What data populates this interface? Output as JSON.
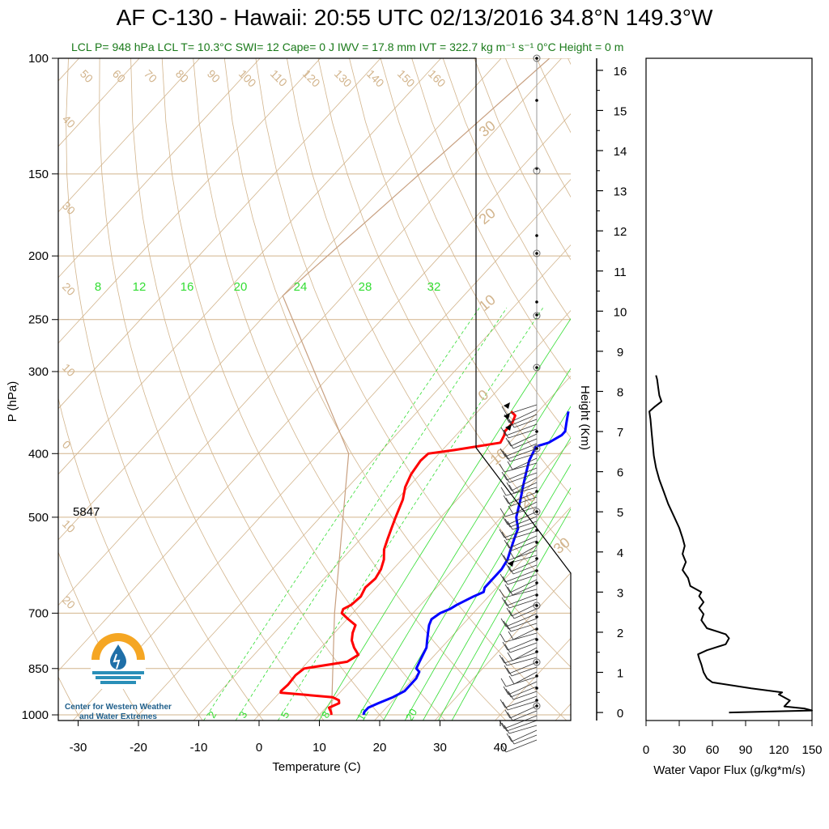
{
  "header": {
    "title": "AF C-130 - Hawaii: 20:55 UTC 02/13/2016  34.8°N 149.3°W",
    "subtitle": "LCL P= 948 hPa  LCL T= 10.3°C  SWI= 12  Cape= 0 J  IWV = 17.8 mm  IVT = 322.7 kg m⁻¹ s⁻¹  0°C Height = 0 m"
  },
  "logo": {
    "line1": "Center for Western Weather",
    "line2": "and Water Extremes",
    "colors": {
      "sun": "#f5a623",
      "drop": "#1f6fa8",
      "water": "#2a8fb8"
    }
  },
  "colors": {
    "temperature": "#ff0000",
    "dewpoint": "#0000ff",
    "skew_lines": "#d2b48c",
    "mixing_ratio": "#33dd33",
    "frame": "#000000"
  },
  "chart_data": [
    {
      "type": "line",
      "name": "skew-t",
      "xlabel": "Temperature (C)",
      "ylabel": "P (hPa)",
      "x_ticks": [
        "-30",
        "-20",
        "-10",
        "0",
        "10",
        "20",
        "30",
        "40"
      ],
      "y_ticks": [
        "100",
        "150",
        "200",
        "250",
        "300",
        "400",
        "500",
        "700",
        "850",
        "1000"
      ],
      "xlim": [
        -33,
        45
      ],
      "ylim_hPa": [
        100,
        1020
      ],
      "annotation": "5847",
      "isotherm_labels": [
        "50",
        "60",
        "70",
        "80",
        "90",
        "100",
        "110",
        "120",
        "130",
        "140",
        "150",
        "160",
        "40",
        "30",
        "20",
        "10",
        "0",
        "10",
        "20"
      ],
      "theta_labels": [
        "30",
        "20",
        "10",
        "0",
        "10",
        "20",
        "30"
      ],
      "mixing_ratio_labels_top": [
        "8",
        "12",
        "16",
        "20",
        "24",
        "28",
        "32"
      ],
      "mixing_ratio_labels_bottom": [
        "2",
        "3",
        "5",
        "8",
        "12",
        "20"
      ],
      "series": [
        {
          "name": "Temperature",
          "p": [
            1000,
            990,
            975,
            960,
            950,
            940,
            925,
            920,
            900,
            870,
            850,
            830,
            810,
            790,
            770,
            750,
            730,
            715,
            700,
            690,
            680,
            660,
            640,
            620,
            600,
            580,
            560,
            540,
            520,
            500,
            470,
            450,
            430,
            410,
            400,
            395,
            385,
            375,
            370,
            360,
            350,
            345
          ],
          "t": [
            12.0,
            11.5,
            10.5,
            11.5,
            11.0,
            9.5,
            0.2,
            0.0,
            0.2,
            0.0,
            0.4,
            6.5,
            7.3,
            5.5,
            4.0,
            3.0,
            2.3,
            0.2,
            -1.8,
            -2.2,
            -1.5,
            -1.2,
            -1.8,
            -1.5,
            -2.0,
            -3.0,
            -4.5,
            -5.5,
            -6.5,
            -7.5,
            -9.0,
            -10.5,
            -11.5,
            -12.0,
            -11.8,
            -8.0,
            -1.5,
            -2.0,
            -2.5,
            -2.5,
            -3.2,
            -4.5
          ]
        },
        {
          "name": "Dewpoint",
          "p": [
            1000,
            990,
            975,
            960,
            940,
            920,
            900,
            880,
            860,
            850,
            830,
            810,
            790,
            770,
            750,
            730,
            715,
            700,
            690,
            680,
            660,
            650,
            640,
            620,
            600,
            580,
            560,
            540,
            520,
            500,
            470,
            450,
            430,
            410,
            400,
            390,
            385,
            375,
            370,
            360,
            350,
            345
          ],
          "t": [
            17.3,
            17.0,
            17.0,
            18.0,
            19.5,
            20.5,
            20.5,
            20.5,
            20.0,
            19.0,
            18.5,
            18.0,
            17.5,
            16.5,
            15.5,
            14.5,
            14.0,
            14.5,
            15.5,
            16.0,
            17.5,
            18.5,
            18.0,
            18.0,
            18.0,
            17.5,
            16.5,
            15.5,
            14.5,
            12.5,
            10.5,
            9.0,
            7.5,
            6.0,
            5.5,
            5.0,
            6.5,
            7.5,
            7.5,
            6.5,
            5.5,
            5.0
          ]
        }
      ]
    },
    {
      "type": "line",
      "name": "water-vapor-flux",
      "xlabel": "Water Vapor Flux (g/kg*m/s)",
      "ylabel": "Height (Km)",
      "x_ticks": [
        "0",
        "30",
        "60",
        "90",
        "120",
        "150"
      ],
      "y_ticks": [
        "0",
        "1",
        "2",
        "3",
        "4",
        "5",
        "6",
        "7",
        "8",
        "9",
        "10",
        "11",
        "12",
        "13",
        "14",
        "15",
        "16"
      ],
      "xlim": [
        0,
        150
      ],
      "ylim": [
        -0.2,
        16.3
      ],
      "series": [
        {
          "name": "",
          "h": [
            0.0,
            0.05,
            0.1,
            0.15,
            0.3,
            0.45,
            0.5,
            0.6,
            0.75,
            0.85,
            1.0,
            1.2,
            1.35,
            1.45,
            1.55,
            1.7,
            1.85,
            1.95,
            2.1,
            2.3,
            2.45,
            2.6,
            2.75,
            2.9,
            3.0,
            3.15,
            3.35,
            3.55,
            3.75,
            3.95,
            4.15,
            4.35,
            4.6,
            4.9,
            5.2,
            5.5,
            5.8,
            6.1,
            6.4,
            6.7,
            7.0,
            7.3,
            7.5,
            7.62,
            7.75,
            7.9,
            8.1,
            8.3,
            8.4
          ],
          "flux": [
            75,
            150,
            143,
            125,
            130,
            120,
            123,
            95,
            60,
            55,
            52,
            50,
            48,
            47,
            55,
            72,
            75,
            72,
            55,
            50,
            52,
            48,
            52,
            48,
            50,
            40,
            38,
            33,
            36,
            33,
            35,
            33,
            30,
            25,
            20,
            16,
            12,
            9,
            7,
            6,
            5,
            4,
            3,
            8,
            14,
            12,
            11,
            10,
            9
          ]
        }
      ]
    }
  ]
}
